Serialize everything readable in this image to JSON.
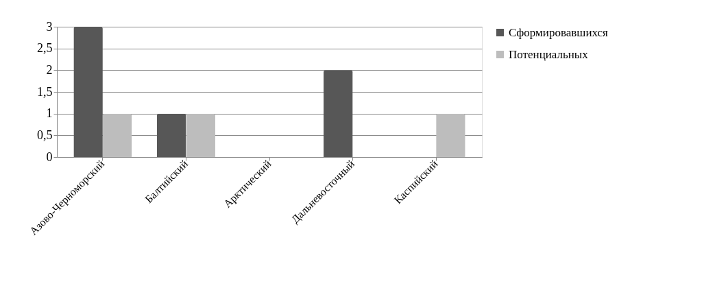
{
  "chart_data": {
    "type": "bar",
    "categories": [
      "Азово-Черноморский",
      "Балтийский",
      "Арктический",
      "Дальневосточный",
      "Каспийский"
    ],
    "series": [
      {
        "name": "Сформировавшихся",
        "color": "#575757",
        "values": [
          3,
          1,
          0,
          2,
          0
        ]
      },
      {
        "name": "Потенциальных",
        "color": "#bdbdbd",
        "values": [
          1,
          1,
          0,
          0,
          1
        ]
      }
    ],
    "ylim": [
      0,
      3
    ],
    "yticks": [
      0,
      {
        "value": 0.5,
        "label": "0,5"
      },
      1,
      {
        "value": 1.5,
        "label": "1,5"
      },
      2,
      {
        "value": 2.5,
        "label": "2,5"
      },
      3
    ],
    "grid": "y",
    "legend": "right"
  }
}
